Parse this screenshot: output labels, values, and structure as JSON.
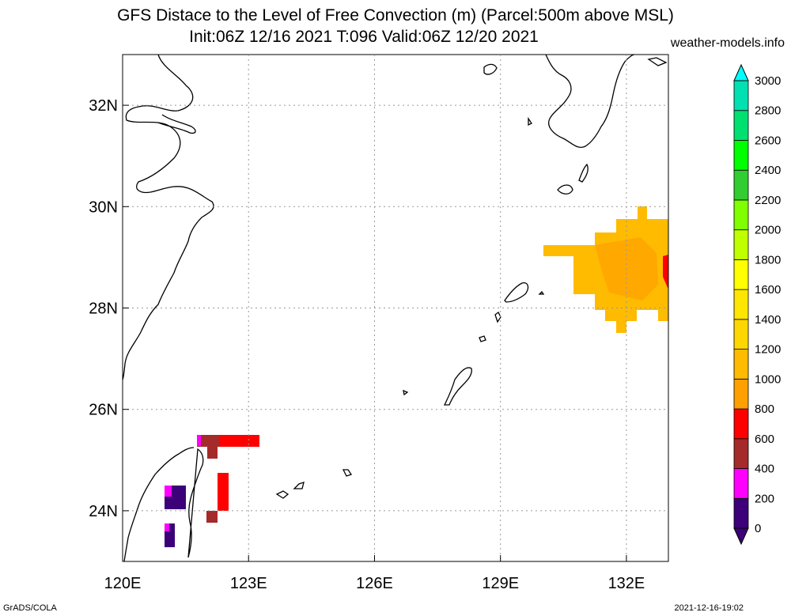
{
  "title": {
    "line1": "GFS Distace to the Level of Free Convection (m) (Parcel:500m above MSL)",
    "line2": "Init:06Z 12/16 2021 T:096 Valid:06Z 12/20 2021",
    "credit": "weather-models.info"
  },
  "footer": {
    "left": "GrADS/COLA",
    "right": "2021-12-16-19:02"
  },
  "map": {
    "lon_range": [
      120,
      133
    ],
    "lat_range": [
      23,
      33
    ],
    "x_ticks": [
      "120E",
      "123E",
      "126E",
      "129E",
      "132E"
    ],
    "y_ticks": [
      "24N",
      "26N",
      "28N",
      "30N",
      "32N"
    ],
    "grid": "dotted"
  },
  "colorbar": {
    "labels": [
      "0",
      "200",
      "400",
      "600",
      "800",
      "1000",
      "1200",
      "1400",
      "1600",
      "1800",
      "2000",
      "2200",
      "2400",
      "2600",
      "2800",
      "3000"
    ],
    "colors": [
      "#3c0078",
      "#ff00ff",
      "#a52a2a",
      "#ff0000",
      "#ff9f00",
      "#ffbb00",
      "#ffd700",
      "#ffe600",
      "#ffff00",
      "#c0ff00",
      "#80ff00",
      "#32cd32",
      "#00ff00",
      "#00e070",
      "#00e0b0",
      "#00ffff"
    ]
  }
}
